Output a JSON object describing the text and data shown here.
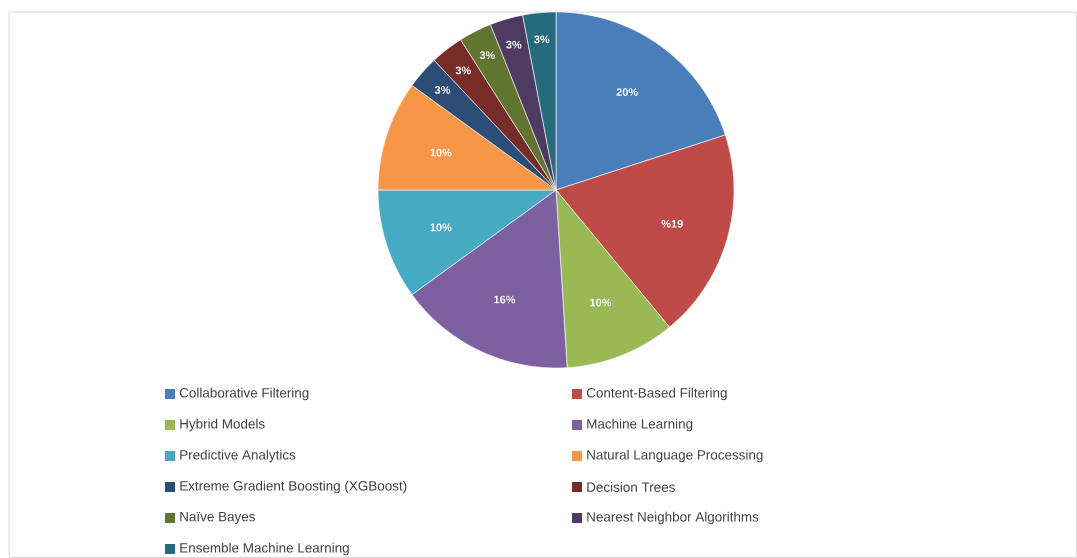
{
  "chart_data": {
    "type": "pie",
    "categories": [
      "Collaborative Filtering",
      "Content-Based Filtering",
      "Hybrid Models",
      "Machine Learning",
      "Predictive Analytics",
      "Natural Language Processing",
      "Extreme Gradient Boosting (XGBoost)",
      "Decision Trees",
      "Naïve Bayes",
      "Nearest Neighbor Algorithms",
      "Ensemble Machine Learning"
    ],
    "values": [
      20,
      19,
      10,
      16,
      10,
      10,
      3,
      3,
      3,
      3,
      3
    ],
    "value_labels": [
      "20%",
      "%19",
      "10%",
      "16%",
      "10%",
      "10%",
      "3%",
      "3%",
      "3%",
      "3%",
      "3%"
    ],
    "colors": [
      "#4a7ebb",
      "#be4b48",
      "#98b954",
      "#7d60a0",
      "#46aac5",
      "#f79646",
      "#2c4d75",
      "#772c2a",
      "#5f7530",
      "#4d3b62",
      "#276a7c"
    ],
    "legend": "bottom"
  }
}
